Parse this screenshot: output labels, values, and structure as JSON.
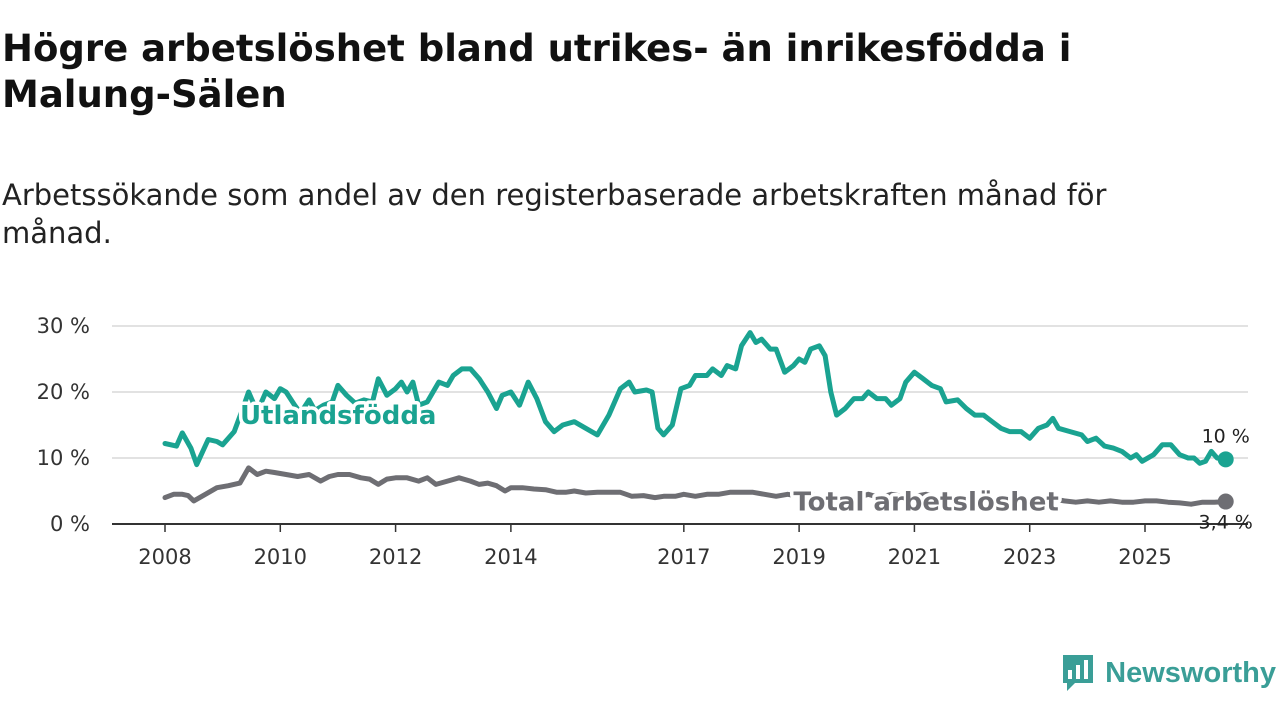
{
  "header": {
    "title": "Högre arbetslöshet bland utrikes- än inrikesfödda i Malung-Sälen",
    "subtitle": "Arbetssökande som andel av den registerbaserade arbetskraften månad för månad."
  },
  "brand": {
    "name": "Newsworthy",
    "icon": "newsworthy-logo-icon",
    "color": "#3a9e97"
  },
  "chart_data": {
    "type": "line",
    "title": "Högre arbetslöshet bland utrikes- än inrikesfödda i Malung-Sälen",
    "subtitle": "Arbetssökande som andel av den registerbaserade arbetskraften månad för månad.",
    "xlabel": "",
    "ylabel": "",
    "xlim": [
      2008,
      2026
    ],
    "ylim": [
      0,
      30
    ],
    "grid": true,
    "legend": "inline",
    "x_ticks": [
      {
        "value": 2008,
        "label": "2008"
      },
      {
        "value": 2010,
        "label": "2010"
      },
      {
        "value": 2012,
        "label": "2012"
      },
      {
        "value": 2014,
        "label": "2014"
      },
      {
        "value": 2017,
        "label": "2017"
      },
      {
        "value": 2019,
        "label": "2019"
      },
      {
        "value": 2021,
        "label": "2021"
      },
      {
        "value": 2023,
        "label": "2023"
      },
      {
        "value": 2025,
        "label": "2025"
      }
    ],
    "y_ticks": [
      {
        "value": 0,
        "label": "0 %"
      },
      {
        "value": 10,
        "label": "10 %"
      },
      {
        "value": 20,
        "label": "20 %"
      },
      {
        "value": 30,
        "label": "30 %"
      }
    ],
    "series": [
      {
        "name": "Utlandsfödda",
        "color": "#1aa391",
        "end_label": "10 %",
        "label_x": 2009.3,
        "label_y": 16.5,
        "points": [
          [
            2008.0,
            12.2
          ],
          [
            2008.2,
            11.8
          ],
          [
            2008.3,
            13.8
          ],
          [
            2008.45,
            11.5
          ],
          [
            2008.55,
            9.0
          ],
          [
            2008.75,
            12.8
          ],
          [
            2008.9,
            12.5
          ],
          [
            2009.0,
            12.0
          ],
          [
            2009.2,
            14.0
          ],
          [
            2009.35,
            17.5
          ],
          [
            2009.45,
            20.0
          ],
          [
            2009.6,
            17.0
          ],
          [
            2009.75,
            20.0
          ],
          [
            2009.9,
            19.0
          ],
          [
            2010.0,
            20.5
          ],
          [
            2010.1,
            20.0
          ],
          [
            2010.25,
            18.0
          ],
          [
            2010.35,
            16.8
          ],
          [
            2010.5,
            18.8
          ],
          [
            2010.6,
            17.2
          ],
          [
            2010.75,
            18.0
          ],
          [
            2010.9,
            18.5
          ],
          [
            2011.0,
            21.0
          ],
          [
            2011.15,
            19.5
          ],
          [
            2011.3,
            18.3
          ],
          [
            2011.45,
            18.8
          ],
          [
            2011.6,
            18.5
          ],
          [
            2011.7,
            22.0
          ],
          [
            2011.85,
            19.5
          ],
          [
            2012.0,
            20.5
          ],
          [
            2012.1,
            21.5
          ],
          [
            2012.2,
            20.0
          ],
          [
            2012.3,
            21.5
          ],
          [
            2012.4,
            18.0
          ],
          [
            2012.55,
            18.5
          ],
          [
            2012.75,
            21.5
          ],
          [
            2012.9,
            21.0
          ],
          [
            2013.0,
            22.5
          ],
          [
            2013.15,
            23.5
          ],
          [
            2013.3,
            23.5
          ],
          [
            2013.45,
            22.0
          ],
          [
            2013.6,
            20.0
          ],
          [
            2013.75,
            17.5
          ],
          [
            2013.85,
            19.5
          ],
          [
            2014.0,
            20.0
          ],
          [
            2014.15,
            18.0
          ],
          [
            2014.3,
            21.5
          ],
          [
            2014.45,
            19.0
          ],
          [
            2014.6,
            15.5
          ],
          [
            2014.75,
            14.0
          ],
          [
            2014.9,
            15.0
          ],
          [
            2015.1,
            15.5
          ],
          [
            2015.3,
            14.5
          ],
          [
            2015.5,
            13.5
          ],
          [
            2015.7,
            16.5
          ],
          [
            2015.9,
            20.5
          ],
          [
            2016.05,
            21.5
          ],
          [
            2016.15,
            20.0
          ],
          [
            2016.35,
            20.3
          ],
          [
            2016.45,
            20.0
          ],
          [
            2016.55,
            14.5
          ],
          [
            2016.65,
            13.5
          ],
          [
            2016.8,
            15.0
          ],
          [
            2016.95,
            20.5
          ],
          [
            2017.1,
            21.0
          ],
          [
            2017.2,
            22.5
          ],
          [
            2017.4,
            22.5
          ],
          [
            2017.5,
            23.5
          ],
          [
            2017.65,
            22.5
          ],
          [
            2017.75,
            24.0
          ],
          [
            2017.9,
            23.5
          ],
          [
            2018.0,
            27.0
          ],
          [
            2018.15,
            29.0
          ],
          [
            2018.25,
            27.5
          ],
          [
            2018.35,
            28.0
          ],
          [
            2018.5,
            26.5
          ],
          [
            2018.6,
            26.5
          ],
          [
            2018.75,
            23.0
          ],
          [
            2018.9,
            24.0
          ],
          [
            2019.0,
            25.0
          ],
          [
            2019.1,
            24.5
          ],
          [
            2019.2,
            26.5
          ],
          [
            2019.35,
            27.0
          ],
          [
            2019.45,
            25.5
          ],
          [
            2019.55,
            20.0
          ],
          [
            2019.65,
            16.5
          ],
          [
            2019.8,
            17.5
          ],
          [
            2019.95,
            19.0
          ],
          [
            2020.1,
            19.0
          ],
          [
            2020.2,
            20.0
          ],
          [
            2020.35,
            19.0
          ],
          [
            2020.5,
            19.0
          ],
          [
            2020.6,
            18.0
          ],
          [
            2020.75,
            19.0
          ],
          [
            2020.85,
            21.5
          ],
          [
            2021.0,
            23.0
          ],
          [
            2021.15,
            22.0
          ],
          [
            2021.3,
            21.0
          ],
          [
            2021.45,
            20.5
          ],
          [
            2021.55,
            18.5
          ],
          [
            2021.75,
            18.8
          ],
          [
            2021.9,
            17.5
          ],
          [
            2022.05,
            16.5
          ],
          [
            2022.2,
            16.5
          ],
          [
            2022.35,
            15.5
          ],
          [
            2022.5,
            14.5
          ],
          [
            2022.65,
            14.0
          ],
          [
            2022.85,
            14.0
          ],
          [
            2023.0,
            13.0
          ],
          [
            2023.15,
            14.5
          ],
          [
            2023.3,
            15.0
          ],
          [
            2023.4,
            16.0
          ],
          [
            2023.5,
            14.5
          ],
          [
            2023.7,
            14.0
          ],
          [
            2023.9,
            13.5
          ],
          [
            2024.0,
            12.5
          ],
          [
            2024.15,
            13.0
          ],
          [
            2024.3,
            11.8
          ],
          [
            2024.45,
            11.5
          ],
          [
            2024.6,
            11.0
          ],
          [
            2024.75,
            10.0
          ],
          [
            2024.85,
            10.5
          ],
          [
            2024.95,
            9.5
          ],
          [
            2025.15,
            10.5
          ],
          [
            2025.3,
            12.0
          ],
          [
            2025.45,
            12.0
          ],
          [
            2025.6,
            10.5
          ],
          [
            2025.75,
            10.0
          ],
          [
            2025.85,
            10.0
          ],
          [
            2025.95,
            9.2
          ],
          [
            2026.05,
            9.5
          ],
          [
            2026.15,
            11.0
          ],
          [
            2026.25,
            10.0
          ],
          [
            2026.4,
            9.8
          ]
        ]
      },
      {
        "name": "Total arbetslöshet",
        "color": "#6e6e73",
        "end_label": "3,4 %",
        "label_x": 2018.9,
        "label_y": 3.4,
        "points": [
          [
            2008.0,
            4.0
          ],
          [
            2008.15,
            4.5
          ],
          [
            2008.3,
            4.5
          ],
          [
            2008.4,
            4.3
          ],
          [
            2008.5,
            3.5
          ],
          [
            2008.7,
            4.5
          ],
          [
            2008.9,
            5.5
          ],
          [
            2009.1,
            5.8
          ],
          [
            2009.3,
            6.2
          ],
          [
            2009.45,
            8.5
          ],
          [
            2009.6,
            7.5
          ],
          [
            2009.75,
            8.0
          ],
          [
            2009.9,
            7.8
          ],
          [
            2010.1,
            7.5
          ],
          [
            2010.3,
            7.2
          ],
          [
            2010.5,
            7.5
          ],
          [
            2010.7,
            6.5
          ],
          [
            2010.85,
            7.2
          ],
          [
            2011.0,
            7.5
          ],
          [
            2011.2,
            7.5
          ],
          [
            2011.4,
            7.0
          ],
          [
            2011.55,
            6.8
          ],
          [
            2011.7,
            6.0
          ],
          [
            2011.85,
            6.8
          ],
          [
            2012.0,
            7.0
          ],
          [
            2012.2,
            7.0
          ],
          [
            2012.4,
            6.5
          ],
          [
            2012.55,
            7.0
          ],
          [
            2012.7,
            6.0
          ],
          [
            2012.9,
            6.5
          ],
          [
            2013.1,
            7.0
          ],
          [
            2013.3,
            6.5
          ],
          [
            2013.45,
            6.0
          ],
          [
            2013.6,
            6.2
          ],
          [
            2013.75,
            5.8
          ],
          [
            2013.9,
            5.0
          ],
          [
            2014.0,
            5.5
          ],
          [
            2014.2,
            5.5
          ],
          [
            2014.4,
            5.3
          ],
          [
            2014.6,
            5.2
          ],
          [
            2014.8,
            4.8
          ],
          [
            2014.95,
            4.8
          ],
          [
            2015.1,
            5.0
          ],
          [
            2015.3,
            4.7
          ],
          [
            2015.5,
            4.8
          ],
          [
            2015.7,
            4.8
          ],
          [
            2015.9,
            4.8
          ],
          [
            2016.1,
            4.2
          ],
          [
            2016.3,
            4.3
          ],
          [
            2016.5,
            4.0
          ],
          [
            2016.65,
            4.2
          ],
          [
            2016.85,
            4.2
          ],
          [
            2017.0,
            4.5
          ],
          [
            2017.2,
            4.2
          ],
          [
            2017.4,
            4.5
          ],
          [
            2017.6,
            4.5
          ],
          [
            2017.8,
            4.8
          ],
          [
            2018.0,
            4.8
          ],
          [
            2018.2,
            4.8
          ],
          [
            2018.4,
            4.5
          ],
          [
            2018.6,
            4.2
          ],
          [
            2018.8,
            4.5
          ],
          [
            2019.0,
            4.2
          ],
          [
            2019.2,
            4.5
          ],
          [
            2019.4,
            4.0
          ],
          [
            2019.6,
            3.8
          ],
          [
            2019.8,
            3.8
          ],
          [
            2020.0,
            4.0
          ],
          [
            2020.2,
            4.5
          ],
          [
            2020.4,
            4.0
          ],
          [
            2020.6,
            4.5
          ],
          [
            2020.8,
            4.2
          ],
          [
            2021.0,
            4.2
          ],
          [
            2021.2,
            4.5
          ],
          [
            2021.4,
            4.0
          ],
          [
            2021.6,
            3.8
          ],
          [
            2021.8,
            3.8
          ],
          [
            2022.0,
            3.8
          ],
          [
            2022.2,
            4.0
          ],
          [
            2022.4,
            3.8
          ],
          [
            2022.6,
            3.5
          ],
          [
            2022.8,
            3.5
          ],
          [
            2023.0,
            3.5
          ],
          [
            2023.2,
            3.8
          ],
          [
            2023.4,
            3.8
          ],
          [
            2023.6,
            3.5
          ],
          [
            2023.8,
            3.3
          ],
          [
            2024.0,
            3.5
          ],
          [
            2024.2,
            3.3
          ],
          [
            2024.4,
            3.5
          ],
          [
            2024.6,
            3.3
          ],
          [
            2024.8,
            3.3
          ],
          [
            2025.0,
            3.5
          ],
          [
            2025.2,
            3.5
          ],
          [
            2025.4,
            3.3
          ],
          [
            2025.6,
            3.2
          ],
          [
            2025.8,
            3.0
          ],
          [
            2026.0,
            3.3
          ],
          [
            2026.2,
            3.3
          ],
          [
            2026.4,
            3.4
          ]
        ]
      }
    ]
  }
}
